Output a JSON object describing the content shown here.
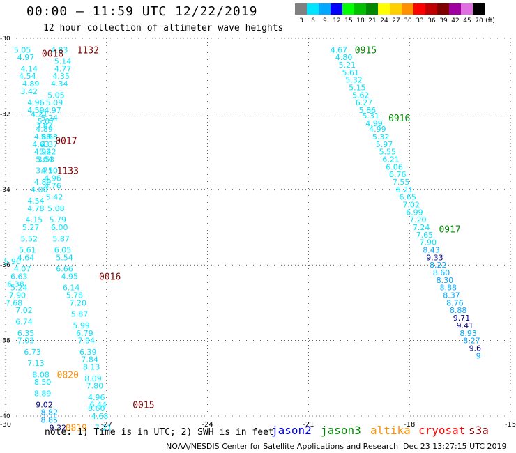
{
  "header": {
    "title": "00:00 – 11:59 UTC 12/22/2019",
    "subtitle": "12 hour collection of altimeter wave heights"
  },
  "color_scale": {
    "unit": "(ft)",
    "bins": [
      {
        "label": "3",
        "color": "#808080"
      },
      {
        "label": "6",
        "color": "#00e5ff"
      },
      {
        "label": "9",
        "color": "#00a8ff"
      },
      {
        "label": "12",
        "color": "#0000ff"
      },
      {
        "label": "15",
        "color": "#00ff00"
      },
      {
        "label": "18",
        "color": "#00c000"
      },
      {
        "label": "21",
        "color": "#008800"
      },
      {
        "label": "24",
        "color": "#ffff00"
      },
      {
        "label": "27",
        "color": "#ffd000"
      },
      {
        "label": "30",
        "color": "#ff9000"
      },
      {
        "label": "33",
        "color": "#ff0000"
      },
      {
        "label": "36",
        "color": "#c00000"
      },
      {
        "label": "39",
        "color": "#800000"
      },
      {
        "label": "42",
        "color": "#a000a0"
      },
      {
        "label": "45",
        "color": "#e070e0"
      },
      {
        "label": "70",
        "color": "#000000"
      }
    ]
  },
  "chart_data": {
    "type": "scatter",
    "xlim": [
      -30,
      -15
    ],
    "ylim": [
      -40,
      -30
    ],
    "x_ticks": [
      {
        "v": -30,
        "label": "-30"
      },
      {
        "v": -27,
        "label": "-27"
      },
      {
        "v": -24,
        "label": "-24"
      },
      {
        "v": -21,
        "label": "-21"
      },
      {
        "v": -18,
        "label": "-18"
      },
      {
        "v": -15,
        "label": "-15"
      }
    ],
    "y_ticks": [
      {
        "v": -30,
        "label": "-30"
      },
      {
        "v": -32,
        "label": "-32"
      },
      {
        "v": -34,
        "label": "-34"
      },
      {
        "v": -36,
        "label": "-36"
      },
      {
        "v": -38,
        "label": "-38"
      },
      {
        "v": -40,
        "label": "-40"
      }
    ],
    "grid": "dotted",
    "text_points": [
      {
        "lon": -29.5,
        "lat": -30.3,
        "t": "5.05",
        "c": "#00e5ff"
      },
      {
        "lon": -29.4,
        "lat": -30.5,
        "t": "4.97",
        "c": "#00e5ff"
      },
      {
        "lon": -29.3,
        "lat": -30.8,
        "t": "4.14",
        "c": "#00e5ff"
      },
      {
        "lon": -29.35,
        "lat": -31.0,
        "t": "4.54",
        "c": "#00e5ff"
      },
      {
        "lon": -29.25,
        "lat": -31.2,
        "t": "4.89",
        "c": "#00e5ff"
      },
      {
        "lon": -29.3,
        "lat": -31.4,
        "t": "3.42",
        "c": "#00e5ff"
      },
      {
        "lon": -29.1,
        "lat": -31.7,
        "t": "4.96",
        "c": "#00e5ff"
      },
      {
        "lon": -29.1,
        "lat": -31.9,
        "t": "4.59",
        "c": "#00e5ff"
      },
      {
        "lon": -29.0,
        "lat": -32.0,
        "t": "4.21",
        "c": "#00e5ff"
      },
      {
        "lon": -28.85,
        "lat": -32.3,
        "t": "3.82",
        "c": "#00e5ff"
      },
      {
        "lon": -28.7,
        "lat": -32.6,
        "t": "5.68",
        "c": "#00e5ff"
      },
      {
        "lon": -28.7,
        "lat": -32.8,
        "t": "4.37",
        "c": "#00e5ff"
      },
      {
        "lon": -28.75,
        "lat": -33.0,
        "t": "5.42",
        "c": "#00e5ff"
      },
      {
        "lon": -28.8,
        "lat": -33.2,
        "t": "3.53",
        "c": "#00e5ff"
      },
      {
        "lon": -28.7,
        "lat": -33.5,
        "t": "4.50",
        "c": "#00e5ff"
      },
      {
        "lon": -28.9,
        "lat": -33.8,
        "t": "4.89",
        "c": "#00e5ff"
      },
      {
        "lon": -29.0,
        "lat": -34.0,
        "t": "4.00",
        "c": "#00e5ff"
      },
      {
        "lon": -29.1,
        "lat": -34.3,
        "t": "4.54",
        "c": "#00e5ff"
      },
      {
        "lon": -29.1,
        "lat": -34.5,
        "t": "4.78",
        "c": "#00e5ff"
      },
      {
        "lon": -29.15,
        "lat": -34.8,
        "t": "4.15",
        "c": "#00e5ff"
      },
      {
        "lon": -29.25,
        "lat": -35.0,
        "t": "5.27",
        "c": "#00e5ff"
      },
      {
        "lon": -29.3,
        "lat": -35.3,
        "t": "5.52",
        "c": "#00e5ff"
      },
      {
        "lon": -29.35,
        "lat": -35.6,
        "t": "5.61",
        "c": "#00e5ff"
      },
      {
        "lon": -29.4,
        "lat": -35.8,
        "t": "4.64",
        "c": "#00e5ff"
      },
      {
        "lon": -29.8,
        "lat": -35.9,
        "t": "5.90",
        "c": "#00e5ff"
      },
      {
        "lon": -29.5,
        "lat": -36.1,
        "t": "4.07",
        "c": "#00e5ff"
      },
      {
        "lon": -29.6,
        "lat": -36.3,
        "t": "6.63",
        "c": "#00e5ff"
      },
      {
        "lon": -29.7,
        "lat": -36.5,
        "t": "6.38",
        "c": "#00e5ff"
      },
      {
        "lon": -29.6,
        "lat": -36.6,
        "t": "5.24",
        "c": "#00e5ff"
      },
      {
        "lon": -29.65,
        "lat": -36.8,
        "t": "7.90",
        "c": "#00e5ff"
      },
      {
        "lon": -29.75,
        "lat": -37.0,
        "t": "7.68",
        "c": "#00e5ff"
      },
      {
        "lon": -29.45,
        "lat": -37.2,
        "t": "7.02",
        "c": "#00e5ff"
      },
      {
        "lon": -29.45,
        "lat": -37.5,
        "t": "6.74",
        "c": "#00e5ff"
      },
      {
        "lon": -29.4,
        "lat": -37.8,
        "t": "6.35",
        "c": "#00e5ff"
      },
      {
        "lon": -29.4,
        "lat": -38.0,
        "t": "7.03",
        "c": "#00e5ff"
      },
      {
        "lon": -29.2,
        "lat": -38.3,
        "t": "6.73",
        "c": "#00e5ff"
      },
      {
        "lon": -29.1,
        "lat": -38.6,
        "t": "7.13",
        "c": "#00e5ff"
      },
      {
        "lon": -28.95,
        "lat": -38.9,
        "t": "8.08",
        "c": "#00e5ff"
      },
      {
        "lon": -28.9,
        "lat": -39.1,
        "t": "8.50",
        "c": "#00e5ff"
      },
      {
        "lon": -28.9,
        "lat": -39.4,
        "t": "8.89",
        "c": "#00e5ff"
      },
      {
        "lon": -28.85,
        "lat": -39.7,
        "t": "9.02",
        "c": "#000080"
      },
      {
        "lon": -28.7,
        "lat": -39.9,
        "t": "8.82",
        "c": "#00a8ff"
      },
      {
        "lon": -28.7,
        "lat": -40.1,
        "t": "8.85",
        "c": "#00a8ff"
      },
      {
        "lon": -28.45,
        "lat": -40.3,
        "t": "9.32",
        "c": "#000080"
      },
      {
        "lon": -28.4,
        "lat": -30.3,
        "t": "4.83",
        "c": "#00e5ff"
      },
      {
        "lon": -28.3,
        "lat": -30.6,
        "t": "5.14",
        "c": "#00e5ff"
      },
      {
        "lon": -28.3,
        "lat": -30.8,
        "t": "4.77",
        "c": "#00e5ff"
      },
      {
        "lon": -28.35,
        "lat": -31.0,
        "t": "4.35",
        "c": "#00e5ff"
      },
      {
        "lon": -28.4,
        "lat": -31.2,
        "t": "4.34",
        "c": "#00e5ff"
      },
      {
        "lon": -28.5,
        "lat": -31.5,
        "t": "5.05",
        "c": "#00e5ff"
      },
      {
        "lon": -28.55,
        "lat": -31.7,
        "t": "5.09",
        "c": "#00e5ff"
      },
      {
        "lon": -28.6,
        "lat": -31.9,
        "t": "4.97",
        "c": "#00e5ff"
      },
      {
        "lon": -28.7,
        "lat": -32.1,
        "t": "5.24",
        "c": "#00e5ff"
      },
      {
        "lon": -28.8,
        "lat": -32.2,
        "t": "5.07",
        "c": "#00e5ff"
      },
      {
        "lon": -28.85,
        "lat": -32.4,
        "t": "4.89",
        "c": "#00e5ff"
      },
      {
        "lon": -28.9,
        "lat": -32.6,
        "t": "4.88",
        "c": "#00e5ff"
      },
      {
        "lon": -28.95,
        "lat": -32.8,
        "t": "4.63",
        "c": "#00e5ff"
      },
      {
        "lon": -28.9,
        "lat": -33.0,
        "t": "4.92",
        "c": "#00e5ff"
      },
      {
        "lon": -28.85,
        "lat": -33.2,
        "t": "5.04",
        "c": "#00e5ff"
      },
      {
        "lon": -28.85,
        "lat": -33.5,
        "t": "3.71",
        "c": "#00e5ff"
      },
      {
        "lon": -28.6,
        "lat": -33.7,
        "t": "4.96",
        "c": "#00e5ff"
      },
      {
        "lon": -28.6,
        "lat": -33.9,
        "t": "4.76",
        "c": "#00e5ff"
      },
      {
        "lon": -28.55,
        "lat": -34.2,
        "t": "5.42",
        "c": "#00e5ff"
      },
      {
        "lon": -28.5,
        "lat": -34.5,
        "t": "5.08",
        "c": "#00e5ff"
      },
      {
        "lon": -28.45,
        "lat": -34.8,
        "t": "5.79",
        "c": "#00e5ff"
      },
      {
        "lon": -28.4,
        "lat": -35.0,
        "t": "6.00",
        "c": "#00e5ff"
      },
      {
        "lon": -28.35,
        "lat": -35.3,
        "t": "5.87",
        "c": "#00e5ff"
      },
      {
        "lon": -28.3,
        "lat": -35.6,
        "t": "6.05",
        "c": "#00e5ff"
      },
      {
        "lon": -28.25,
        "lat": -35.8,
        "t": "5.54",
        "c": "#00e5ff"
      },
      {
        "lon": -28.25,
        "lat": -36.1,
        "t": "6.66",
        "c": "#00e5ff"
      },
      {
        "lon": -28.1,
        "lat": -36.3,
        "t": "4.95",
        "c": "#00e5ff"
      },
      {
        "lon": -28.05,
        "lat": -36.6,
        "t": "6.14",
        "c": "#00e5ff"
      },
      {
        "lon": -27.95,
        "lat": -36.8,
        "t": "5.78",
        "c": "#00e5ff"
      },
      {
        "lon": -27.85,
        "lat": -37.0,
        "t": "7.20",
        "c": "#00e5ff"
      },
      {
        "lon": -27.8,
        "lat": -37.3,
        "t": "5.87",
        "c": "#00e5ff"
      },
      {
        "lon": -27.75,
        "lat": -37.6,
        "t": "5.99",
        "c": "#00e5ff"
      },
      {
        "lon": -27.65,
        "lat": -37.8,
        "t": "6.79",
        "c": "#00e5ff"
      },
      {
        "lon": -27.6,
        "lat": -38.0,
        "t": "7.94",
        "c": "#00e5ff"
      },
      {
        "lon": -27.55,
        "lat": -38.3,
        "t": "6.39",
        "c": "#00e5ff"
      },
      {
        "lon": -27.5,
        "lat": -38.5,
        "t": "7.84",
        "c": "#00e5ff"
      },
      {
        "lon": -27.45,
        "lat": -38.7,
        "t": "8.13",
        "c": "#00e5ff"
      },
      {
        "lon": -27.4,
        "lat": -39.0,
        "t": "8.09",
        "c": "#00e5ff"
      },
      {
        "lon": -27.35,
        "lat": -39.2,
        "t": "7.80",
        "c": "#00e5ff"
      },
      {
        "lon": -27.3,
        "lat": -39.5,
        "t": "4.96",
        "c": "#00e5ff"
      },
      {
        "lon": -27.3,
        "lat": -39.8,
        "t": "8.60",
        "c": "#00e5ff"
      },
      {
        "lon": -27.2,
        "lat": -40.0,
        "t": "4.68",
        "c": "#00e5ff"
      },
      {
        "lon": -27.1,
        "lat": -40.3,
        "t": "7.21",
        "c": "#00e5ff"
      },
      {
        "lon": -27.25,
        "lat": -39.7,
        "t": "6.44",
        "c": "#00e5ff"
      },
      {
        "lon": -20.1,
        "lat": -30.3,
        "t": "4.67",
        "c": "#00e5ff"
      },
      {
        "lon": -19.95,
        "lat": -30.5,
        "t": "4.80",
        "c": "#00e5ff"
      },
      {
        "lon": -19.85,
        "lat": -30.7,
        "t": "5.21",
        "c": "#00e5ff"
      },
      {
        "lon": -19.75,
        "lat": -30.9,
        "t": "5.61",
        "c": "#00e5ff"
      },
      {
        "lon": -19.65,
        "lat": -31.1,
        "t": "5.32",
        "c": "#00e5ff"
      },
      {
        "lon": -19.55,
        "lat": -31.3,
        "t": "5.15",
        "c": "#00e5ff"
      },
      {
        "lon": -19.45,
        "lat": -31.5,
        "t": "5.62",
        "c": "#00e5ff"
      },
      {
        "lon": -19.35,
        "lat": -31.7,
        "t": "6.27",
        "c": "#00e5ff"
      },
      {
        "lon": -19.25,
        "lat": -31.9,
        "t": "5.86",
        "c": "#00e5ff"
      },
      {
        "lon": -19.15,
        "lat": -32.05,
        "t": "5.31",
        "c": "#00e5ff"
      },
      {
        "lon": -19.05,
        "lat": -32.25,
        "t": "4.99",
        "c": "#00e5ff"
      },
      {
        "lon": -18.95,
        "lat": -32.4,
        "t": "4.99",
        "c": "#00e5ff"
      },
      {
        "lon": -18.85,
        "lat": -32.6,
        "t": "5.32",
        "c": "#00e5ff"
      },
      {
        "lon": -18.75,
        "lat": -32.8,
        "t": "5.97",
        "c": "#00e5ff"
      },
      {
        "lon": -18.65,
        "lat": -33.0,
        "t": "5.55",
        "c": "#00e5ff"
      },
      {
        "lon": -18.55,
        "lat": -33.2,
        "t": "6.21",
        "c": "#00e5ff"
      },
      {
        "lon": -18.45,
        "lat": -33.4,
        "t": "6.06",
        "c": "#00e5ff"
      },
      {
        "lon": -18.35,
        "lat": -33.6,
        "t": "6.76",
        "c": "#00e5ff"
      },
      {
        "lon": -18.25,
        "lat": -33.8,
        "t": "7.55",
        "c": "#00e5ff"
      },
      {
        "lon": -18.15,
        "lat": -34.0,
        "t": "6.21",
        "c": "#00e5ff"
      },
      {
        "lon": -18.05,
        "lat": -34.2,
        "t": "6.65",
        "c": "#00e5ff"
      },
      {
        "lon": -17.95,
        "lat": -34.4,
        "t": "7.02",
        "c": "#00e5ff"
      },
      {
        "lon": -17.85,
        "lat": -34.6,
        "t": "6.99",
        "c": "#00e5ff"
      },
      {
        "lon": -17.75,
        "lat": -34.8,
        "t": "7.20",
        "c": "#00e5ff"
      },
      {
        "lon": -17.65,
        "lat": -35.0,
        "t": "7.24",
        "c": "#00e5ff"
      },
      {
        "lon": -17.55,
        "lat": -35.2,
        "t": "7.65",
        "c": "#00e5ff"
      },
      {
        "lon": -17.45,
        "lat": -35.4,
        "t": "7.90",
        "c": "#00e5ff"
      },
      {
        "lon": -17.35,
        "lat": -35.6,
        "t": "8.43",
        "c": "#00a8ff"
      },
      {
        "lon": -17.25,
        "lat": -35.8,
        "t": "9.33",
        "c": "#000080"
      },
      {
        "lon": -17.15,
        "lat": -36.0,
        "t": "8.22",
        "c": "#00a8ff"
      },
      {
        "lon": -17.05,
        "lat": -36.2,
        "t": "8.60",
        "c": "#00a8ff"
      },
      {
        "lon": -16.95,
        "lat": -36.4,
        "t": "8.30",
        "c": "#00a8ff"
      },
      {
        "lon": -16.85,
        "lat": -36.6,
        "t": "8.88",
        "c": "#00a8ff"
      },
      {
        "lon": -16.75,
        "lat": -36.8,
        "t": "8.37",
        "c": "#00a8ff"
      },
      {
        "lon": -16.65,
        "lat": -37.0,
        "t": "8.76",
        "c": "#00a8ff"
      },
      {
        "lon": -16.55,
        "lat": -37.2,
        "t": "8.88",
        "c": "#00a8ff"
      },
      {
        "lon": -16.45,
        "lat": -37.4,
        "t": "9.71",
        "c": "#000080"
      },
      {
        "lon": -16.35,
        "lat": -37.6,
        "t": "9.41",
        "c": "#000080"
      },
      {
        "lon": -16.25,
        "lat": -37.8,
        "t": "8.93",
        "c": "#00a8ff"
      },
      {
        "lon": -16.15,
        "lat": -38.0,
        "t": "8.27",
        "c": "#00a8ff"
      },
      {
        "lon": -16.05,
        "lat": -38.2,
        "t": "9.6",
        "c": "#000080"
      },
      {
        "lon": -15.95,
        "lat": -38.4,
        "t": "9",
        "c": "#00a8ff"
      }
    ],
    "time_labels": [
      {
        "lon": -28.6,
        "lat": -30.4,
        "t": "0018",
        "c": "#800000"
      },
      {
        "lon": -27.55,
        "lat": -30.3,
        "t": "1132",
        "c": "#800000"
      },
      {
        "lon": -28.2,
        "lat": -32.7,
        "t": "0017",
        "c": "#800000"
      },
      {
        "lon": -28.15,
        "lat": -33.5,
        "t": "1133",
        "c": "#800000"
      },
      {
        "lon": -26.9,
        "lat": -36.3,
        "t": "0016",
        "c": "#800000"
      },
      {
        "lon": -25.9,
        "lat": -39.7,
        "t": "0015",
        "c": "#800000"
      },
      {
        "lon": -28.15,
        "lat": -38.9,
        "t": "0820",
        "c": "#ff9000"
      },
      {
        "lon": -27.9,
        "lat": -40.3,
        "t": "0819",
        "c": "#ff9000"
      },
      {
        "lon": -19.3,
        "lat": -30.3,
        "t": "0915",
        "c": "#008800"
      },
      {
        "lon": -18.3,
        "lat": -32.1,
        "t": "0916",
        "c": "#008800"
      },
      {
        "lon": -16.8,
        "lat": -35.05,
        "t": "0917",
        "c": "#008800"
      }
    ]
  },
  "note": "note: 1) Time is in UTC; 2) SWH is in feet",
  "satellites": [
    {
      "name": "jason2",
      "color": "#0000ff"
    },
    {
      "name": "jason3",
      "color": "#008800"
    },
    {
      "name": "altika",
      "color": "#ff9000"
    },
    {
      "name": "cryosat",
      "color": "#ff0000"
    },
    {
      "name": "s3a",
      "color": "#800000"
    }
  ],
  "footer": {
    "credit": "NOAA/NESDIS Center for Satellite Applications and Research",
    "timestamp": "Dec 23 13:27:15 UTC 2019"
  }
}
